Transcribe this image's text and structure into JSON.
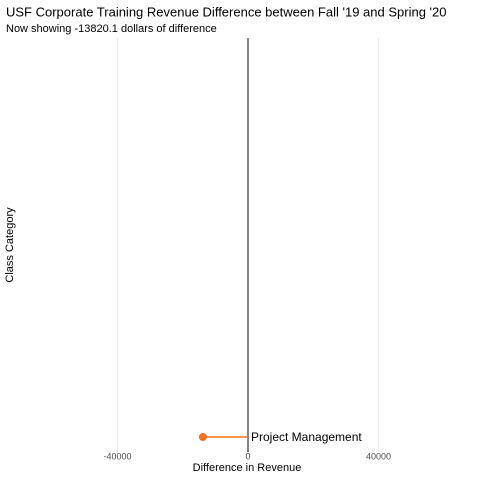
{
  "chart_data": {
    "type": "lollipop",
    "title": "USF Corporate Training Revenue Difference between Fall '19 and Spring '20",
    "subtitle": "Now showing -13820.1 dollars of difference",
    "x_label": "Difference in Revenue",
    "y_label": "Class Category",
    "categories": [
      "Project Management"
    ],
    "values": [
      -13820.1
    ],
    "color": "#f8731f",
    "xlim": [
      -70000,
      70000
    ],
    "xticks": [
      -40000,
      0,
      40000
    ],
    "grid": true
  }
}
